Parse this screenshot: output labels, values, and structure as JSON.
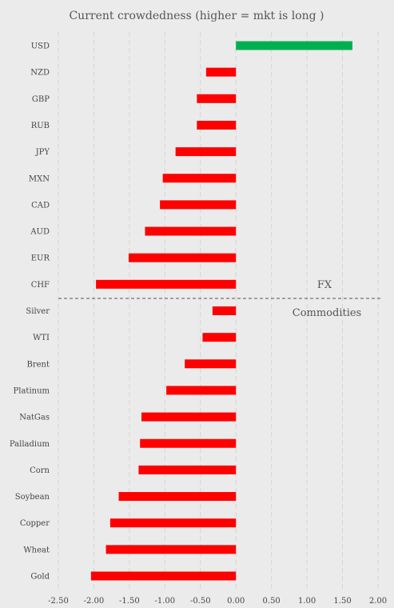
{
  "chart_data": {
    "type": "bar",
    "orientation": "horizontal",
    "title": "Current crowdedness (higher = mkt is long )",
    "categories": [
      "USD",
      "NZD",
      "GBP",
      "RUB",
      "JPY",
      "MXN",
      "CAD",
      "AUD",
      "EUR",
      "CHF",
      "Silver",
      "WTI",
      "Brent",
      "Platinum",
      "NatGas",
      "Palladium",
      "Corn",
      "Soybean",
      "Copper",
      "Wheat",
      "Gold"
    ],
    "values": [
      1.64,
      -0.42,
      -0.55,
      -0.55,
      -0.85,
      -1.03,
      -1.07,
      -1.28,
      -1.51,
      -1.97,
      -0.33,
      -0.47,
      -0.72,
      -0.98,
      -1.33,
      -1.35,
      -1.37,
      -1.65,
      -1.77,
      -1.83,
      -2.04
    ],
    "xlim": [
      -2.5,
      2.0
    ],
    "xticks": [
      "-2.50",
      "-2.00",
      "-1.50",
      "-1.00",
      "-0.50",
      "0.00",
      "0.50",
      "1.00",
      "1.50",
      "2.00"
    ],
    "grid": true,
    "colors": {
      "positive": "#00b050",
      "negative": "#ff0000",
      "background": "#ebebeb"
    },
    "groups": [
      {
        "label": "FX",
        "count": 10
      },
      {
        "label": "Commodities",
        "count": 11
      }
    ]
  }
}
